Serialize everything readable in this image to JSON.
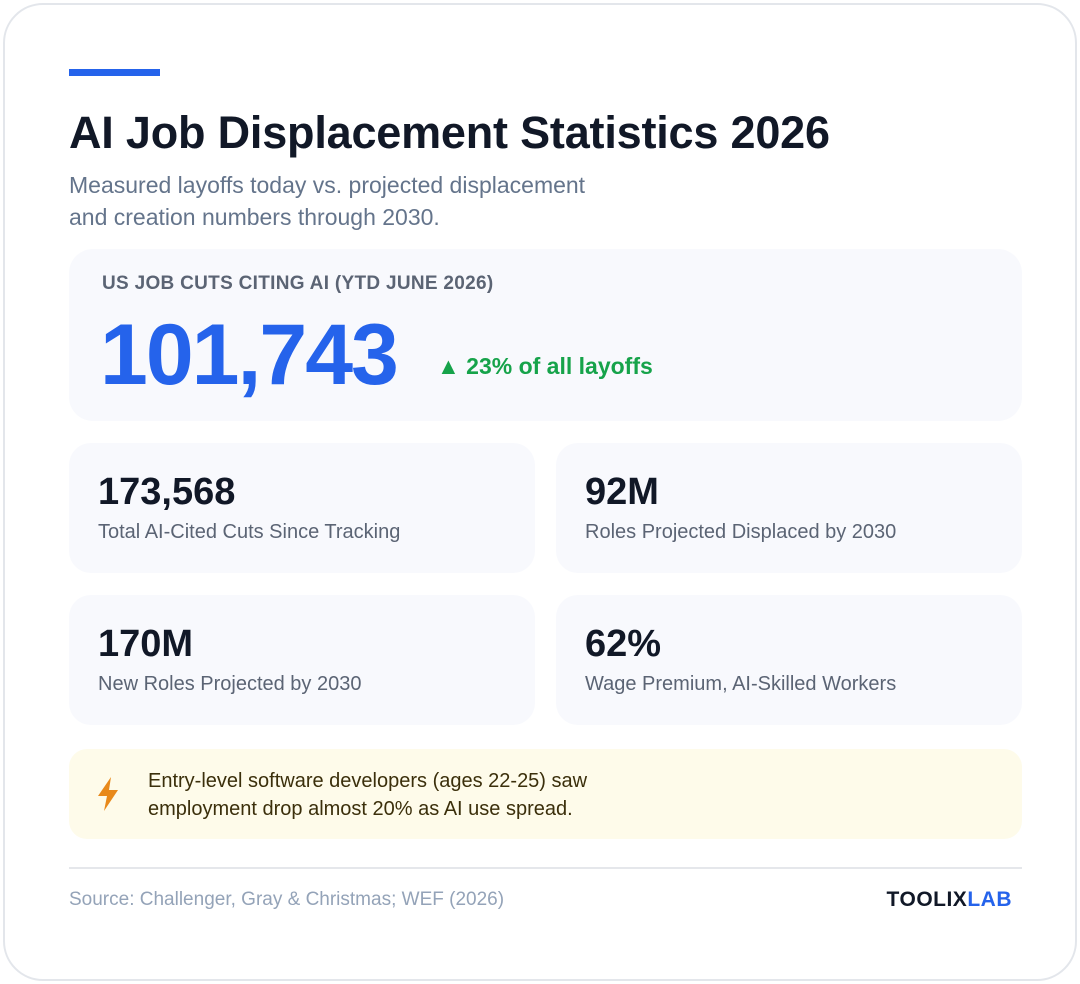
{
  "header": {
    "title": "AI Job Displacement Statistics 2026",
    "subtitle_lines": [
      "Measured layoffs today vs. projected displacement",
      "and creation numbers through 2030."
    ]
  },
  "hero": {
    "label": "US JOB CUTS CITING AI (YTD JUNE 2026)",
    "value": "101,743",
    "change": "▲ 23% of all layoffs"
  },
  "stats": [
    {
      "value": "173,568",
      "label": "Total AI-Cited Cuts Since Tracking"
    },
    {
      "value": "92M",
      "label": "Roles Projected Displaced by 2030"
    },
    {
      "value": "170M",
      "label": "New Roles Projected by 2030"
    },
    {
      "value": "62%",
      "label": "Wage Premium, AI-Skilled Workers"
    }
  ],
  "callout": {
    "icon": "lightning-bolt-icon",
    "lines": [
      "Entry-level software developers (ages 22-25) saw",
      "employment drop almost 20% as AI use spread."
    ]
  },
  "footer": {
    "source": "Source: Challenger, Gray & Christmas; WEF (2026)",
    "brand_part1": "TOOLIX",
    "brand_part2": "LAB"
  },
  "colors": {
    "accent": "#2563eb",
    "positive": "#16a34a",
    "callout_bg": "#fefbea",
    "bolt": "#e8891b"
  }
}
